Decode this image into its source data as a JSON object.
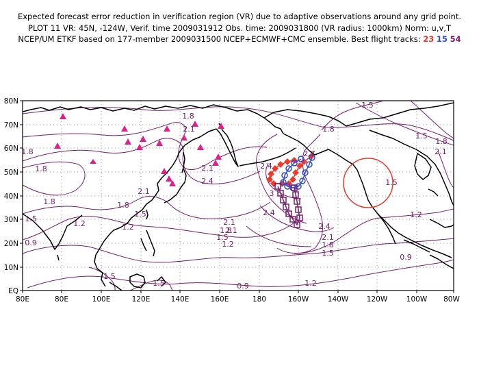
{
  "header": {
    "line1": "Expected forecast error reduction in verification region (VR) due to adaptive observations around any grid point.",
    "line2": "PLOT 11 VR: 45N, -124W, Verif. time 2009031912 Obs. time: 2009031800 (VR radius: 1000km) Norm: u,v,T",
    "line3_prefix": "NCEP/UM ETKF based on 177-member 2009031500 NCEP+ECMWF+CMC ensemble. Best flight tracks:",
    "tracks": [
      {
        "number": "23",
        "color": "#ee3a2a"
      },
      {
        "number": "15",
        "color": "#2d4bd8"
      },
      {
        "number": "54",
        "color": "#7a1a6e"
      }
    ]
  },
  "map": {
    "lat_labels": [
      "80N",
      "70N",
      "60N",
      "50N",
      "40N",
      "30N",
      "20N",
      "10N",
      "EQ"
    ],
    "lon_labels": [
      "80E",
      "80E",
      "100E",
      "120E",
      "140E",
      "160E",
      "180",
      "160W",
      "140W",
      "120W",
      "100W",
      "80W"
    ],
    "contour_labels": [
      "1.8",
      "2.1",
      "1.8",
      "1.8",
      "1.5",
      "0.9",
      "1.8",
      "2.1",
      "1.8",
      "1.5",
      "1.2",
      "1.2",
      "2.1",
      "2.4",
      "2.1",
      "2.1",
      "1.8",
      "1.5",
      "1.2",
      "1.5",
      "1.5",
      "0.9",
      "1.2",
      "2.4",
      "1.8",
      "2.4",
      "2.1",
      "1.8",
      "1.5",
      "1.2",
      "0.9",
      "1.5",
      "1.5",
      "1.8",
      "2.1",
      "1.5",
      "1.2",
      "2.7",
      "3",
      "2.4"
    ],
    "colors": {
      "contour": "#7a1a6e",
      "coastline": "#000000",
      "grid": "#9a9a9a",
      "triangle": "#e0208a",
      "verification_circle": "#ee3a2a"
    }
  }
}
